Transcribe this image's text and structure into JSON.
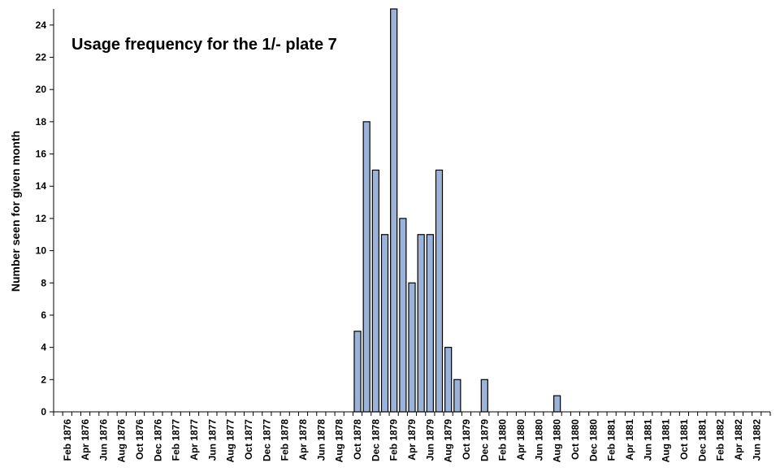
{
  "chart_data": {
    "type": "bar",
    "title": "Usage frequency for the 1/- plate 7",
    "xlabel": "",
    "ylabel": "Number seen for given month",
    "ylim": [
      0,
      25
    ],
    "yticks": [
      0,
      2,
      4,
      6,
      8,
      10,
      12,
      14,
      16,
      18,
      20,
      22,
      24
    ],
    "grid": false,
    "legend": "none",
    "categories": [
      "Jan 1876",
      "Feb 1876",
      "Mar 1876",
      "Apr 1876",
      "May 1876",
      "Jun 1876",
      "Jul 1876",
      "Aug 1876",
      "Sep 1876",
      "Oct 1876",
      "Nov 1876",
      "Dec 1876",
      "Jan 1877",
      "Feb 1877",
      "Mar 1877",
      "Apr 1877",
      "May 1877",
      "Jun 1877",
      "Jul 1877",
      "Aug 1877",
      "Sep 1877",
      "Oct 1877",
      "Nov 1877",
      "Dec 1877",
      "Jan 1878",
      "Feb 1878",
      "Mar 1878",
      "Apr 1878",
      "May 1878",
      "Jun 1878",
      "Jul 1878",
      "Aug 1878",
      "Sep 1878",
      "Oct 1878",
      "Nov 1878",
      "Dec 1878",
      "Jan 1879",
      "Feb 1879",
      "Mar 1879",
      "Apr 1879",
      "May 1879",
      "Jun 1879",
      "Jul 1879",
      "Aug 1879",
      "Sep 1879",
      "Oct 1879",
      "Nov 1879",
      "Dec 1879",
      "Jan 1880",
      "Feb 1880",
      "Mar 1880",
      "Apr 1880",
      "May 1880",
      "Jun 1880",
      "Jul 1880",
      "Aug 1880",
      "Sep 1880",
      "Oct 1880",
      "Nov 1880",
      "Dec 1880",
      "Jan 1881",
      "Feb 1881",
      "Mar 1881",
      "Apr 1881",
      "May 1881",
      "Jun 1881",
      "Jul 1881",
      "Aug 1881",
      "Sep 1881",
      "Oct 1881",
      "Nov 1881",
      "Dec 1881",
      "Jan 1882",
      "Feb 1882",
      "Mar 1882",
      "Apr 1882",
      "May 1882",
      "Jun 1882",
      "Jul 1882"
    ],
    "tick_labels": [
      "Feb 1876",
      "Apr 1876",
      "Jun 1876",
      "Aug 1876",
      "Oct 1876",
      "Dec 1876",
      "Feb 1877",
      "Apr 1877",
      "Jun 1877",
      "Aug 1877",
      "Oct 1877",
      "Dec 1877",
      "Feb 1878",
      "Apr 1878",
      "Jun 1878",
      "Aug 1878",
      "Oct 1878",
      "Dec 1878",
      "Feb 1879",
      "Apr 1879",
      "Jun 1879",
      "Aug 1879",
      "Oct 1879",
      "Dec 1879",
      "Feb 1880",
      "Apr 1880",
      "Jun 1880",
      "Aug 1880",
      "Oct 1880",
      "Dec 1880",
      "Feb 1881",
      "Apr 1881",
      "Jun 1881",
      "Aug 1881",
      "Oct 1881",
      "Dec 1881",
      "Feb 1882",
      "Apr 1882",
      "Jun 1882"
    ],
    "series": [
      {
        "values": [
          0,
          0,
          0,
          0,
          0,
          0,
          0,
          0,
          0,
          0,
          0,
          0,
          0,
          0,
          0,
          0,
          0,
          0,
          0,
          0,
          0,
          0,
          0,
          0,
          0,
          0,
          0,
          0,
          0,
          0,
          0,
          0,
          0,
          5,
          18,
          15,
          11,
          26,
          12,
          8,
          11,
          11,
          15,
          4,
          2,
          0,
          0,
          2,
          0,
          0,
          0,
          0,
          0,
          0,
          0,
          1,
          0,
          0,
          0,
          0,
          0,
          0,
          0,
          0,
          0,
          0,
          0,
          0,
          0,
          0,
          0,
          0,
          0,
          0,
          0,
          0,
          0,
          0,
          0
        ]
      }
    ],
    "colors": {
      "bar_fill": "#9bb3d9",
      "bar_stroke": "#000000",
      "axis": "#000000",
      "background": "#ffffff"
    }
  }
}
